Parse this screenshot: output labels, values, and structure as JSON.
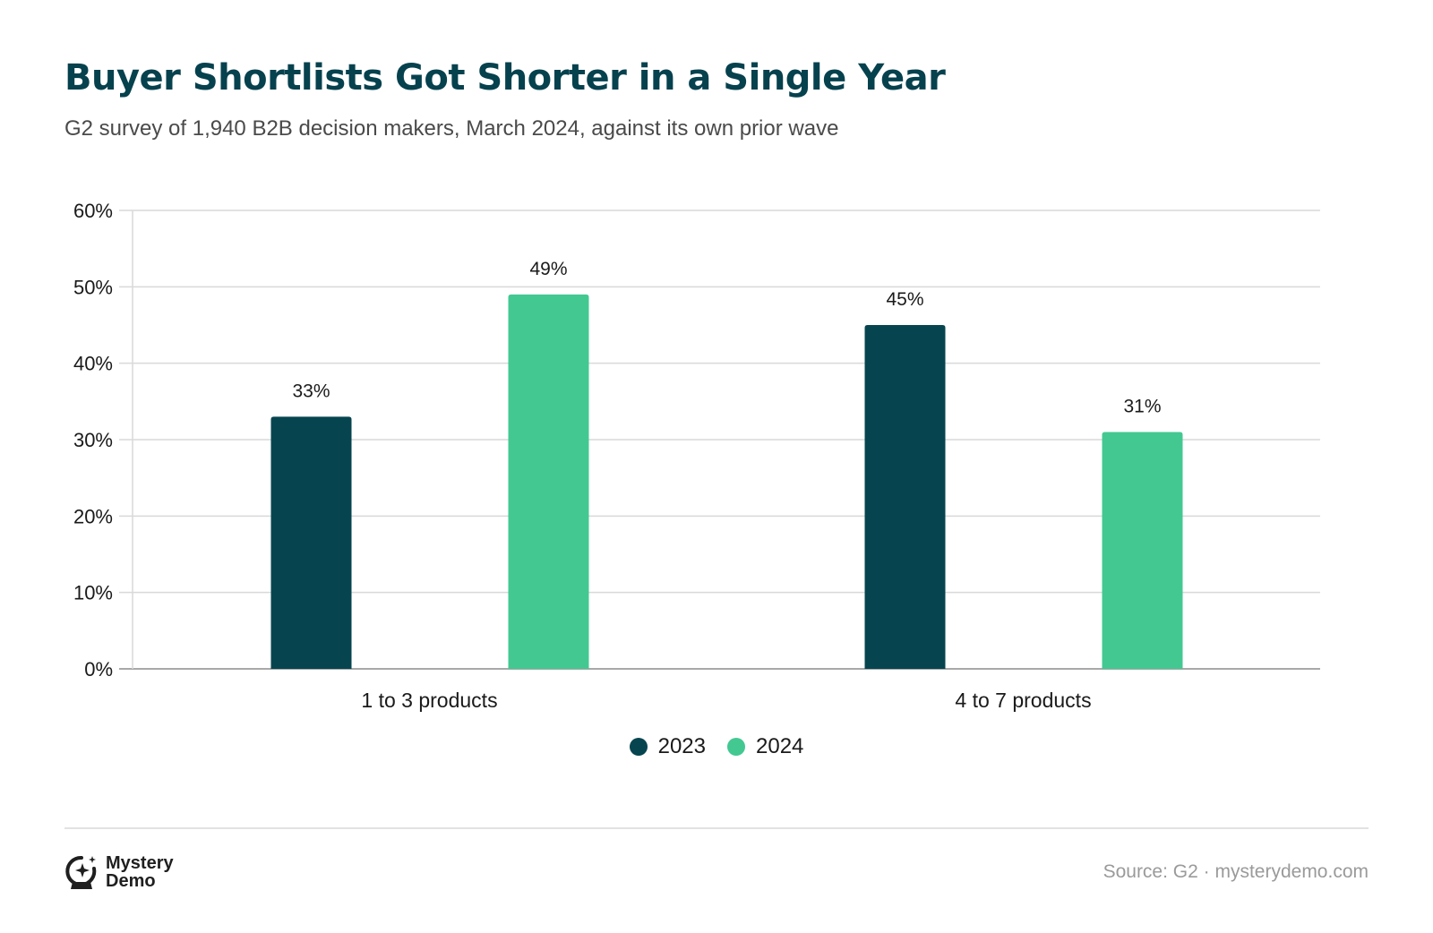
{
  "header": {
    "title": "Buyer Shortlists Got Shorter in a Single Year",
    "subtitle": "G2 survey of 1,940 B2B decision makers, March 2024, against its own prior wave"
  },
  "chart_data": {
    "type": "bar",
    "title": "Buyer Shortlists Got Shorter in a Single Year",
    "subtitle": "G2 survey of 1,940 B2B decision makers, March 2024, against its own prior wave",
    "categories": [
      "1 to 3 products",
      "4 to 7 products"
    ],
    "series": [
      {
        "name": "2023",
        "values": [
          33,
          45
        ],
        "color": "#06454f"
      },
      {
        "name": "2024",
        "values": [
          49,
          31
        ],
        "color": "#43c891"
      }
    ],
    "value_suffix": "%",
    "ylim": [
      0,
      60
    ],
    "yticks": [
      "0%",
      "10%",
      "20%",
      "30%",
      "40%",
      "50%",
      "60%"
    ],
    "grid": true,
    "legend_position": "bottom-center"
  },
  "footer": {
    "brand_name": "Mystery Demo",
    "source": "Source: G2 · mysterydemo.com"
  }
}
